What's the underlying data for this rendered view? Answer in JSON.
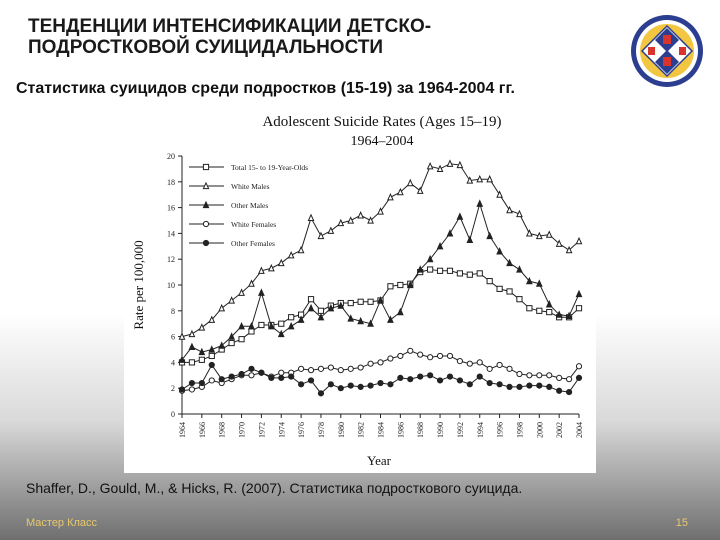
{
  "slide": {
    "title_line1": "ТЕНДЕНЦИИ ИНТЕНСИФИКАЦИИ ДЕТСКО-",
    "title_line2": "ПОДРОСТКОВОЙ СУИЦИДАЛЬНОСТИ",
    "subtitle": "Статистика суицидов среди подростков (15-19) за 1964-2004 гг.",
    "citation": "Shaffer, D., Gould, M., & Hicks, R. (2007). Статистика подросткового суицида.",
    "footer_left": "Мастер Класс",
    "page_number": "15",
    "emblem_icon": "organization-emblem-icon",
    "footer_color": "#e8c86a"
  },
  "chart_data": {
    "type": "line",
    "title_line1": "Adolescent Suicide Rates (Ages 15–19)",
    "title_line2": "1964–2004",
    "xlabel": "Year",
    "ylabel": "Rate per 100,000",
    "ylim": [
      0,
      20
    ],
    "yticks": [
      0,
      2,
      4,
      6,
      8,
      10,
      12,
      14,
      16,
      18,
      20
    ],
    "xlim": [
      1964,
      2004
    ],
    "xticks": [
      1964,
      1966,
      1968,
      1970,
      1972,
      1974,
      1976,
      1978,
      1980,
      1982,
      1984,
      1986,
      1988,
      1990,
      1992,
      1994,
      1996,
      1998,
      2000,
      2002,
      2004
    ],
    "legend_position": "top-left",
    "x": [
      1964,
      1965,
      1966,
      1967,
      1968,
      1969,
      1970,
      1971,
      1972,
      1973,
      1974,
      1975,
      1976,
      1977,
      1978,
      1979,
      1980,
      1981,
      1982,
      1983,
      1984,
      1985,
      1986,
      1987,
      1988,
      1989,
      1990,
      1991,
      1992,
      1993,
      1994,
      1995,
      1996,
      1997,
      1998,
      1999,
      2000,
      2001,
      2002,
      2003,
      2004
    ],
    "series": [
      {
        "name": "Total 15- to 19-Year-Olds",
        "marker": "square",
        "values": [
          4.0,
          4.0,
          4.2,
          4.5,
          5.0,
          5.5,
          5.8,
          6.4,
          6.9,
          6.9,
          7.0,
          7.5,
          7.7,
          8.9,
          8.0,
          8.4,
          8.6,
          8.6,
          8.7,
          8.7,
          8.8,
          9.9,
          10.0,
          10.1,
          11.0,
          11.2,
          11.1,
          11.1,
          10.9,
          10.8,
          10.9,
          10.3,
          9.7,
          9.5,
          8.9,
          8.2,
          8.0,
          7.9,
          7.5,
          7.5,
          8.2
        ]
      },
      {
        "name": "White Males",
        "marker": "open-triangle",
        "values": [
          6.0,
          6.2,
          6.7,
          7.3,
          8.2,
          8.8,
          9.4,
          10.1,
          11.1,
          11.3,
          11.7,
          12.3,
          12.7,
          15.2,
          13.8,
          14.2,
          14.8,
          15.0,
          15.4,
          15.0,
          15.7,
          16.8,
          17.2,
          17.9,
          17.3,
          19.2,
          19.0,
          19.4,
          19.3,
          18.1,
          18.2,
          18.2,
          17.0,
          15.8,
          15.5,
          14.0,
          13.8,
          13.9,
          13.2,
          12.7,
          13.4
        ]
      },
      {
        "name": "Other Males",
        "marker": "filled-triangle",
        "values": [
          4.2,
          5.2,
          4.8,
          5.0,
          5.3,
          6.0,
          6.8,
          6.8,
          9.4,
          6.8,
          6.2,
          6.8,
          7.3,
          8.2,
          7.5,
          8.2,
          8.4,
          7.4,
          7.2,
          7.0,
          8.8,
          7.3,
          7.9,
          10.0,
          11.2,
          12.0,
          13.0,
          14.0,
          15.3,
          13.5,
          16.3,
          13.8,
          12.6,
          11.7,
          11.2,
          10.3,
          10.1,
          8.5,
          7.7,
          7.6,
          9.3
        ]
      },
      {
        "name": "White Females",
        "marker": "open-circle",
        "values": [
          1.8,
          1.9,
          2.1,
          2.6,
          2.4,
          2.7,
          3.0,
          3.0,
          3.2,
          2.9,
          3.2,
          3.2,
          3.5,
          3.4,
          3.5,
          3.6,
          3.4,
          3.5,
          3.6,
          3.9,
          4.0,
          4.3,
          4.5,
          4.9,
          4.6,
          4.4,
          4.5,
          4.5,
          4.1,
          3.9,
          4.0,
          3.5,
          3.8,
          3.5,
          3.1,
          3.0,
          3.0,
          3.0,
          2.8,
          2.7,
          3.7
        ]
      },
      {
        "name": "Other Females",
        "marker": "filled-circle",
        "values": [
          1.9,
          2.4,
          2.4,
          3.8,
          2.7,
          2.9,
          3.1,
          3.5,
          3.2,
          2.8,
          2.8,
          2.9,
          2.3,
          2.6,
          1.6,
          2.3,
          2.0,
          2.2,
          2.1,
          2.2,
          2.4,
          2.3,
          2.8,
          2.7,
          2.9,
          3.0,
          2.6,
          2.9,
          2.6,
          2.3,
          2.9,
          2.4,
          2.3,
          2.1,
          2.1,
          2.2,
          2.2,
          2.1,
          1.8,
          1.7,
          2.8
        ]
      }
    ]
  }
}
